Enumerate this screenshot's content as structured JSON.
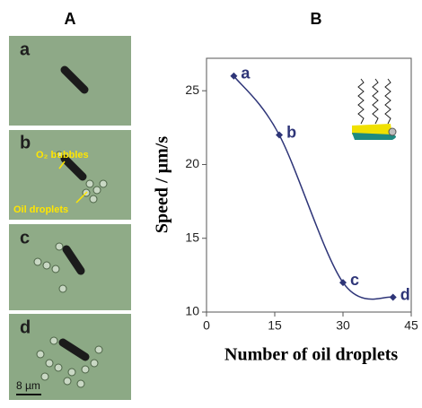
{
  "figure": {
    "panel_labels": [
      "A",
      "B"
    ],
    "images": [
      {
        "label": "a"
      },
      {
        "label": "b",
        "annotations": [
          "O₂ bubbles",
          "Oil droplets"
        ]
      },
      {
        "label": "c"
      },
      {
        "label": "d",
        "scale_bar": "8 µm"
      }
    ]
  },
  "chart_data": {
    "type": "line",
    "x_label": "Number of oil droplets",
    "y_label": "Speed / µm/s",
    "x": [
      6,
      16,
      30,
      41
    ],
    "y": [
      26,
      22,
      12,
      11
    ],
    "point_labels": [
      "a",
      "b",
      "c",
      "d"
    ],
    "color": "#2e3578",
    "xlim": [
      0,
      45
    ],
    "xticks": [
      0,
      15,
      30,
      45
    ],
    "ylim": [
      10,
      27.2
    ],
    "yticks": [
      10,
      15,
      20,
      25
    ],
    "smooth": true
  }
}
